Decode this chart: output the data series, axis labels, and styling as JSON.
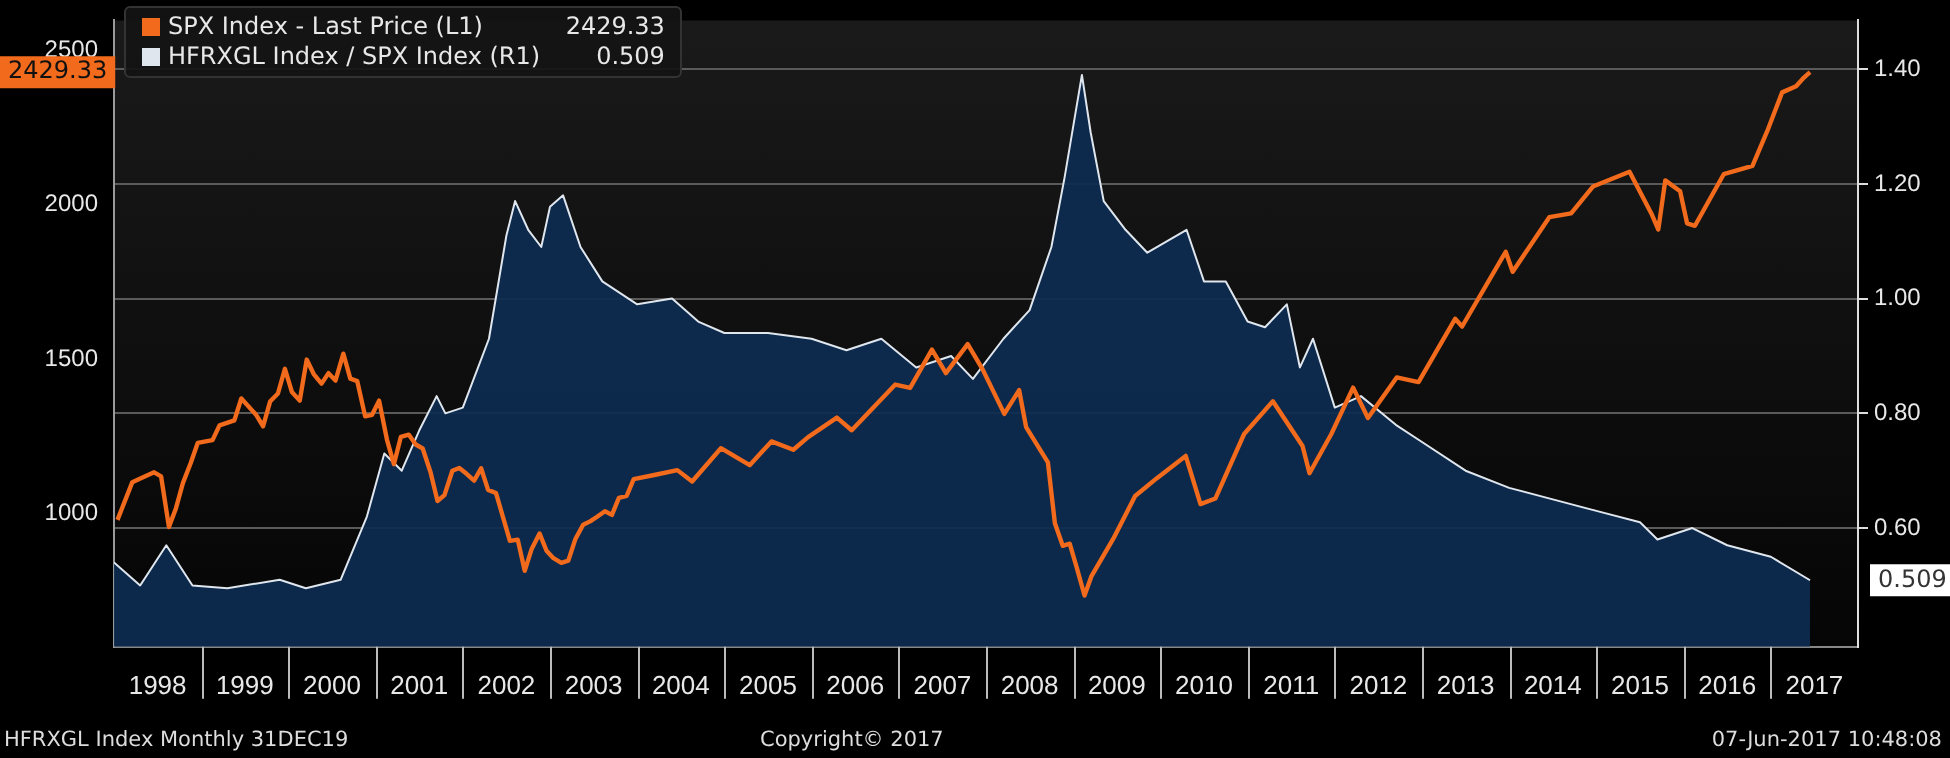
{
  "chart_data": {
    "type": "line",
    "legend": "top left",
    "grid": "y",
    "xlim": [
      1998,
      2018
    ],
    "xticks": [
      {
        "value": 1998.5,
        "label": "1998"
      },
      {
        "value": 1999.5,
        "label": "1999"
      },
      {
        "value": 2000.5,
        "label": "2000"
      },
      {
        "value": 2001.5,
        "label": "2001"
      },
      {
        "value": 2002.5,
        "label": "2002"
      },
      {
        "value": 2003.5,
        "label": "2003"
      },
      {
        "value": 2004.5,
        "label": "2004"
      },
      {
        "value": 2005.5,
        "label": "2005"
      },
      {
        "value": 2006.5,
        "label": "2006"
      },
      {
        "value": 2007.5,
        "label": "2007"
      },
      {
        "value": 2008.5,
        "label": "2008"
      },
      {
        "value": 2009.5,
        "label": "2009"
      },
      {
        "value": 2010.5,
        "label": "2010"
      },
      {
        "value": 2011.5,
        "label": "2011"
      },
      {
        "value": 2012.5,
        "label": "2012"
      },
      {
        "value": 2013.5,
        "label": "2013"
      },
      {
        "value": 2014.5,
        "label": "2014"
      },
      {
        "value": 2015.5,
        "label": "2015"
      },
      {
        "value": 2016.5,
        "label": "2016"
      },
      {
        "value": 2017.5,
        "label": "2017"
      }
    ],
    "ylim": [
      569,
      2597
    ],
    "yticks": [
      1000,
      1500,
      2000,
      2500
    ],
    "y2lim": [
      0.393,
      1.485
    ],
    "y2ticks": [
      {
        "value": 0.6,
        "label": "0.60"
      },
      {
        "value": 0.8,
        "label": "0.80"
      },
      {
        "value": 1.0,
        "label": "1.00"
      },
      {
        "value": 1.2,
        "label": "1.20"
      },
      {
        "value": 1.4,
        "label": "1.40"
      }
    ],
    "series": [
      {
        "name": "HFRXGL Index / SPX Index (R1)",
        "type": "area",
        "axis": "y2",
        "color": "#dfe6ee",
        "x": [
          1998.0,
          1998.3,
          1998.6,
          1998.9,
          1999.3,
          1999.9,
          2000.2,
          2000.6,
          2000.9,
          2001.1,
          2001.3,
          2001.5,
          2001.7,
          2001.8,
          2002.0,
          2002.3,
          2002.5,
          2002.6,
          2002.75,
          2002.9,
          2003.0,
          2003.15,
          2003.35,
          2003.6,
          2004.0,
          2004.4,
          2004.7,
          2005.0,
          2005.5,
          2006.0,
          2006.4,
          2006.8,
          2007.2,
          2007.6,
          2007.85,
          2008.2,
          2008.5,
          2008.75,
          2008.9,
          2009.1,
          2009.2,
          2009.35,
          2009.6,
          2009.85,
          2010.3,
          2010.5,
          2010.75,
          2011.0,
          2011.2,
          2011.45,
          2011.6,
          2011.75,
          2012.0,
          2012.3,
          2012.7,
          2013.0,
          2013.5,
          2014.0,
          2014.5,
          2015.0,
          2015.5,
          2015.7,
          2016.1,
          2016.5,
          2017.0,
          2017.45
        ],
        "values": [
          0.54,
          0.5,
          0.57,
          0.5,
          0.495,
          0.51,
          0.495,
          0.51,
          0.62,
          0.73,
          0.7,
          0.77,
          0.83,
          0.8,
          0.81,
          0.93,
          1.11,
          1.17,
          1.12,
          1.09,
          1.16,
          1.18,
          1.09,
          1.03,
          0.99,
          1.0,
          0.96,
          0.94,
          0.94,
          0.93,
          0.91,
          0.93,
          0.88,
          0.9,
          0.86,
          0.93,
          0.98,
          1.09,
          1.21,
          1.39,
          1.29,
          1.17,
          1.12,
          1.08,
          1.12,
          1.03,
          1.03,
          0.96,
          0.95,
          0.99,
          0.88,
          0.93,
          0.81,
          0.83,
          0.78,
          0.75,
          0.7,
          0.67,
          0.65,
          0.63,
          0.61,
          0.58,
          0.6,
          0.57,
          0.55,
          0.509
        ]
      },
      {
        "name": "SPX Index - Last Price (L1)",
        "axis": "y",
        "color": "#f26a1b",
        "x": [
          1998.04,
          1998.21,
          1998.29,
          1998.46,
          1998.54,
          1998.63,
          1998.71,
          1998.79,
          1998.88,
          1998.96,
          1999.13,
          1999.21,
          1999.38,
          1999.46,
          1999.63,
          1999.71,
          1999.79,
          1999.88,
          1999.96,
          2000.04,
          2000.13,
          2000.21,
          2000.29,
          2000.38,
          2000.46,
          2000.54,
          2000.63,
          2000.71,
          2000.79,
          2000.88,
          2000.96,
          2001.04,
          2001.13,
          2001.21,
          2001.29,
          2001.38,
          2001.46,
          2001.54,
          2001.63,
          2001.71,
          2001.79,
          2001.88,
          2001.96,
          2002.04,
          2002.13,
          2002.21,
          2002.29,
          2002.38,
          2002.46,
          2002.54,
          2002.63,
          2002.71,
          2002.79,
          2002.88,
          2002.96,
          2003.04,
          2003.13,
          2003.21,
          2003.29,
          2003.38,
          2003.46,
          2003.54,
          2003.63,
          2003.71,
          2003.79,
          2003.88,
          2003.96,
          2004.21,
          2004.46,
          2004.63,
          2004.96,
          2005.29,
          2005.54,
          2005.79,
          2005.96,
          2006.29,
          2006.46,
          2006.96,
          2007.13,
          2007.38,
          2007.54,
          2007.79,
          2007.96,
          2008.21,
          2008.38,
          2008.46,
          2008.71,
          2008.79,
          2008.88,
          2008.96,
          2009.04,
          2009.13,
          2009.21,
          2009.46,
          2009.71,
          2009.96,
          2010.29,
          2010.46,
          2010.63,
          2010.96,
          2011.29,
          2011.63,
          2011.71,
          2011.96,
          2012.21,
          2012.38,
          2012.71,
          2012.96,
          2013.38,
          2013.46,
          2013.96,
          2014.04,
          2014.46,
          2014.71,
          2014.96,
          2015.38,
          2015.63,
          2015.71,
          2015.79,
          2015.96,
          2016.04,
          2016.13,
          2016.46,
          2016.79,
          2016.96,
          2017.13,
          2017.29,
          2017.38,
          2017.45
        ],
        "values": [
          980,
          1102,
          1112,
          1134,
          1121,
          957,
          1017,
          1099,
          1164,
          1229,
          1238,
          1286,
          1302,
          1373,
          1320,
          1283,
          1363,
          1389,
          1469,
          1394,
          1366,
          1499,
          1452,
          1421,
          1455,
          1431,
          1518,
          1437,
          1429,
          1315,
          1320,
          1366,
          1240,
          1160,
          1249,
          1256,
          1224,
          1211,
          1134,
          1041,
          1060,
          1139,
          1148,
          1130,
          1107,
          1147,
          1077,
          1067,
          990,
          912,
          916,
          815,
          886,
          936,
          880,
          856,
          841,
          848,
          917,
          964,
          975,
          990,
          1008,
          996,
          1051,
          1058,
          1112,
          1126,
          1141,
          1104,
          1212,
          1157,
          1234,
          1207,
          1248,
          1311,
          1270,
          1418,
          1407,
          1531,
          1455,
          1549,
          1468,
          1323,
          1400,
          1280,
          1166,
          969,
          896,
          903,
          826,
          735,
          798,
          919,
          1057,
          1115,
          1187,
          1031,
          1049,
          1258,
          1364,
          1219,
          1131,
          1258,
          1408,
          1310,
          1441,
          1426,
          1631,
          1606,
          1848,
          1783,
          1960,
          1972,
          2059,
          2107,
          1972,
          1920,
          2079,
          2044,
          1940,
          1932,
          2099,
          2126,
          2239,
          2364,
          2384,
          2412,
          2429.33
        ]
      }
    ],
    "annotations": [
      "HFRXGL Index Monthly 31DEC19",
      "Copyright© 2017",
      "07-Jun-2017 10:48:08",
      "0.509",
      "2429.33"
    ]
  }
}
